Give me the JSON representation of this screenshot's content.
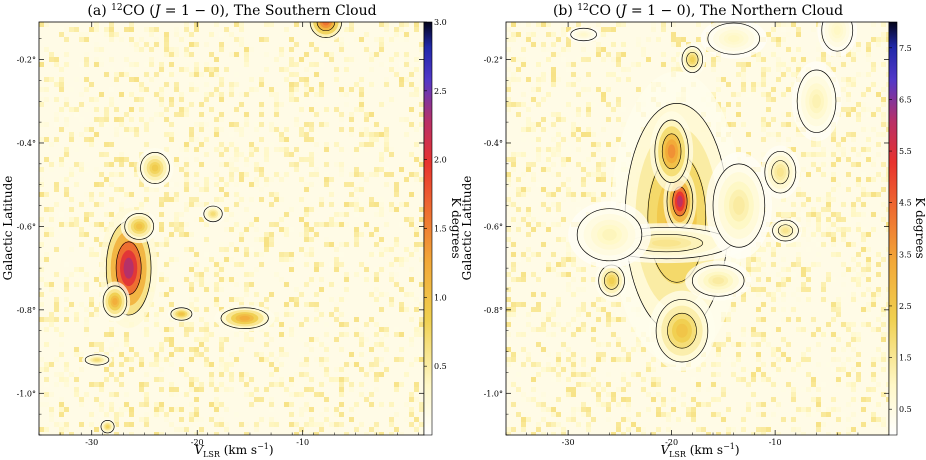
{
  "chart_data": [
    {
      "type": "heatmap",
      "panel": "(a)",
      "title": "(a) ¹²CO (J = 1 − 0), The Southern Cloud",
      "title_parts": {
        "label": "(a) ",
        "sup": "12",
        "mol": "CO (",
        "j": "J",
        "trans": " = 1 − 0), The Southern Cloud"
      },
      "xlabel": "V_LSR (km s⁻¹)",
      "xlabel_parts": {
        "v": "V",
        "sub": "LSR",
        "unit": " (km s",
        "exp": "−1",
        "close": ")"
      },
      "ylabel": "Galactic Latitude",
      "colorbar_label": "K degrees",
      "xlim": [
        -35,
        1.5
      ],
      "ylim": [
        -1.1,
        -0.11
      ],
      "xticks": [
        -30,
        -20,
        -10
      ],
      "xtick_labels": [
        "-30",
        "-20",
        "-10"
      ],
      "yticks": [
        -0.2,
        -0.4,
        -0.6,
        -0.8,
        -1.0
      ],
      "ytick_labels": [
        "-0.2°",
        "-0.4°",
        "-0.6°",
        "-0.8°",
        "-1.0°"
      ],
      "cbar_range": [
        0.0,
        3.0
      ],
      "cbar_ticks": [
        0.5,
        1.0,
        1.5,
        2.0,
        2.5,
        3.0
      ],
      "cbar_tick_labels": [
        "0.5",
        "1.0",
        "1.5",
        "2.0",
        "2.5",
        "3.0"
      ],
      "regions": [
        {
          "v": -26.5,
          "b": -0.7,
          "sv": 1.7,
          "sb": 0.09,
          "peak": 2.3
        },
        {
          "v": -27.8,
          "b": -0.78,
          "sv": 0.9,
          "sb": 0.03,
          "peak": 1.2
        },
        {
          "v": -25.5,
          "b": -0.6,
          "sv": 1.1,
          "sb": 0.025,
          "peak": 1.0
        },
        {
          "v": -24.0,
          "b": -0.46,
          "sv": 1.1,
          "sb": 0.03,
          "peak": 0.9
        },
        {
          "v": -7.8,
          "b": -0.11,
          "sv": 1.2,
          "sb": 0.03,
          "peak": 1.6
        },
        {
          "v": -15.5,
          "b": -0.82,
          "sv": 1.8,
          "sb": 0.02,
          "peak": 1.2
        },
        {
          "v": -21.5,
          "b": -0.81,
          "sv": 0.8,
          "sb": 0.012,
          "peak": 1.0
        },
        {
          "v": -18.5,
          "b": -0.57,
          "sv": 0.7,
          "sb": 0.015,
          "peak": 0.7
        },
        {
          "v": -29.5,
          "b": -0.92,
          "sv": 0.9,
          "sb": 0.01,
          "peak": 0.7
        },
        {
          "v": -28.5,
          "b": -1.08,
          "sv": 0.5,
          "sb": 0.012,
          "peak": 0.8
        }
      ]
    },
    {
      "type": "heatmap",
      "panel": "(b)",
      "title": "(b) ¹²CO (J = 1 − 0), The Northern Cloud",
      "title_parts": {
        "label": "(b) ",
        "sup": "12",
        "mol": "CO (",
        "j": "J",
        "trans": " = 1 − 0), The Northern Cloud"
      },
      "xlabel": "V_LSR (km s⁻¹)",
      "xlabel_parts": {
        "v": "V",
        "sub": "LSR",
        "unit": " (km s",
        "exp": "−1",
        "close": ")"
      },
      "ylabel": "Galactic Latitude",
      "colorbar_label": "K degrees",
      "xlim": [
        -36,
        1.0
      ],
      "ylim": [
        -1.1,
        -0.11
      ],
      "xticks": [
        -30,
        -20,
        -10
      ],
      "xtick_labels": [
        "-30",
        "-20",
        "-10"
      ],
      "yticks": [
        -0.2,
        -0.4,
        -0.6,
        -0.8,
        -1.0
      ],
      "ytick_labels": [
        "-0.2°",
        "-0.4°",
        "-0.6°",
        "-0.8°",
        "-1.0°"
      ],
      "cbar_range": [
        0.0,
        8.0
      ],
      "cbar_ticks": [
        0.5,
        1.5,
        2.5,
        3.5,
        4.5,
        5.5,
        6.5,
        7.5
      ],
      "cbar_tick_labels": [
        "0.5",
        "1.5",
        "2.5",
        "3.5",
        "4.5",
        "5.5",
        "6.5",
        "7.5"
      ],
      "regions": [
        {
          "v": -19.5,
          "b": -0.58,
          "sv": 4.0,
          "sb": 0.22,
          "peak": 2.8
        },
        {
          "v": -19.2,
          "b": -0.54,
          "sv": 1.0,
          "sb": 0.05,
          "peak": 6.0
        },
        {
          "v": -20.0,
          "b": -0.42,
          "sv": 1.3,
          "sb": 0.06,
          "peak": 3.8
        },
        {
          "v": -20.5,
          "b": -0.64,
          "sv": 5.0,
          "sb": 0.03,
          "peak": 1.6
        },
        {
          "v": -19.0,
          "b": -0.85,
          "sv": 2.0,
          "sb": 0.06,
          "peak": 2.6
        },
        {
          "v": -25.8,
          "b": -0.73,
          "sv": 1.0,
          "sb": 0.03,
          "peak": 2.3
        },
        {
          "v": -13.5,
          "b": -0.55,
          "sv": 2.0,
          "sb": 0.08,
          "peak": 1.4
        },
        {
          "v": -9.5,
          "b": -0.47,
          "sv": 1.2,
          "sb": 0.04,
          "peak": 1.6
        },
        {
          "v": -6.0,
          "b": -0.3,
          "sv": 1.5,
          "sb": 0.06,
          "peak": 1.2
        },
        {
          "v": -4.0,
          "b": -0.13,
          "sv": 1.2,
          "sb": 0.04,
          "peak": 1.0
        },
        {
          "v": -18.0,
          "b": -0.2,
          "sv": 0.8,
          "sb": 0.025,
          "peak": 2.2
        },
        {
          "v": -14.0,
          "b": -0.15,
          "sv": 2.0,
          "sb": 0.03,
          "peak": 1.0
        },
        {
          "v": -28.5,
          "b": -0.14,
          "sv": 1.0,
          "sb": 0.012,
          "peak": 0.9
        },
        {
          "v": -15.5,
          "b": -0.73,
          "sv": 2.0,
          "sb": 0.03,
          "peak": 1.4
        },
        {
          "v": -26.0,
          "b": -0.62,
          "sv": 2.5,
          "sb": 0.05,
          "peak": 1.1
        },
        {
          "v": -9.0,
          "b": -0.61,
          "sv": 1.0,
          "sb": 0.02,
          "peak": 1.6
        }
      ]
    }
  ]
}
